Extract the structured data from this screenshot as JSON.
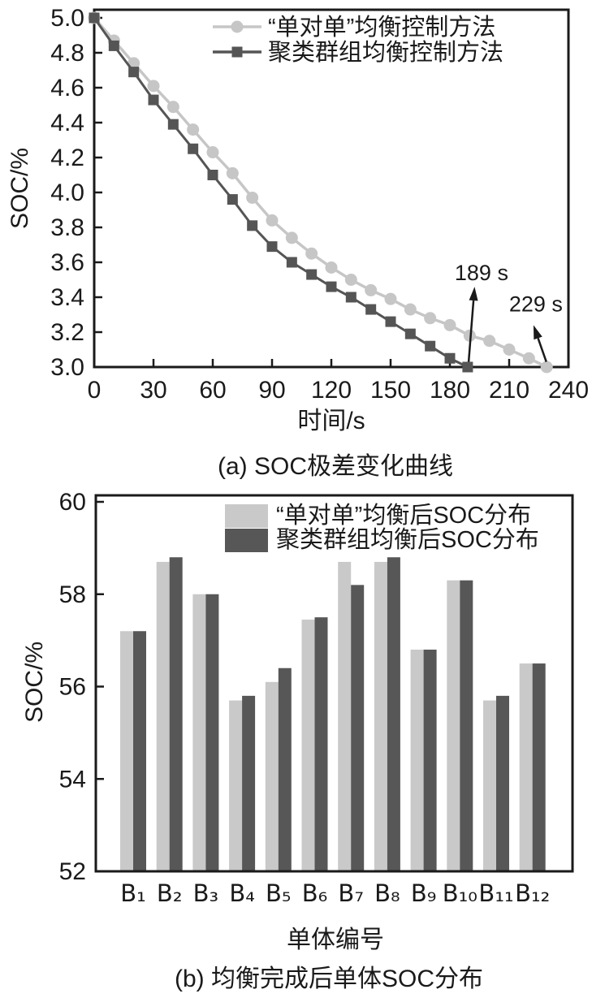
{
  "figure": {
    "background": "#ffffff",
    "ink": "#1a1a1a"
  },
  "chart_data": [
    {
      "id": "chart-a",
      "type": "line",
      "caption": "(a) SOC极差变化曲线",
      "xlabel": "时间/s",
      "ylabel": "SOC/%",
      "xlim": [
        0,
        240
      ],
      "ylim": [
        3.0,
        5.0
      ],
      "xticks": [
        "0",
        "30",
        "60",
        "90",
        "120",
        "150",
        "180",
        "210",
        "240"
      ],
      "yticks": [
        "3.0",
        "3.2",
        "3.4",
        "3.6",
        "3.8",
        "4.0",
        "4.2",
        "4.4",
        "4.6",
        "4.8",
        "5.0"
      ],
      "grid": false,
      "legend_position": "top-inside",
      "series": [
        {
          "name": "“单对单”均衡控制方法",
          "marker": "circle",
          "color": "#c6c6c6",
          "points": [
            [
              0,
              5.0
            ],
            [
              10,
              4.87
            ],
            [
              20,
              4.74
            ],
            [
              30,
              4.61
            ],
            [
              40,
              4.49
            ],
            [
              50,
              4.36
            ],
            [
              60,
              4.23
            ],
            [
              70,
              4.11
            ],
            [
              80,
              3.97
            ],
            [
              90,
              3.84
            ],
            [
              100,
              3.74
            ],
            [
              110,
              3.65
            ],
            [
              120,
              3.57
            ],
            [
              130,
              3.5
            ],
            [
              140,
              3.44
            ],
            [
              150,
              3.39
            ],
            [
              160,
              3.33
            ],
            [
              170,
              3.28
            ],
            [
              180,
              3.24
            ],
            [
              190,
              3.18
            ],
            [
              200,
              3.15
            ],
            [
              210,
              3.1
            ],
            [
              220,
              3.05
            ],
            [
              229,
              3.0
            ]
          ]
        },
        {
          "name": "聚类群组均衡控制方法",
          "marker": "square",
          "color": "#555555",
          "points": [
            [
              0,
              5.0
            ],
            [
              10,
              4.84
            ],
            [
              20,
              4.69
            ],
            [
              30,
              4.53
            ],
            [
              40,
              4.39
            ],
            [
              50,
              4.25
            ],
            [
              60,
              4.1
            ],
            [
              70,
              3.96
            ],
            [
              80,
              3.81
            ],
            [
              90,
              3.69
            ],
            [
              100,
              3.6
            ],
            [
              110,
              3.53
            ],
            [
              120,
              3.46
            ],
            [
              130,
              3.4
            ],
            [
              140,
              3.33
            ],
            [
              150,
              3.26
            ],
            [
              160,
              3.19
            ],
            [
              170,
              3.12
            ],
            [
              180,
              3.05
            ],
            [
              189,
              3.0
            ]
          ]
        }
      ],
      "annotations": [
        {
          "text": "189 s",
          "text_at": [
            196,
            3.54
          ],
          "arrow_tip": [
            192.5,
            3.46
          ],
          "arrow_tail": [
            189.5,
            3.03
          ]
        },
        {
          "text": "229 s",
          "text_at": [
            223.5,
            3.36
          ],
          "arrow_tip": [
            222.3,
            3.24
          ],
          "arrow_tail": [
            228.8,
            3.03
          ]
        }
      ]
    },
    {
      "id": "chart-b",
      "type": "bar",
      "caption": "(b) 均衡完成后单体SOC分布",
      "xlabel": "单体编号",
      "ylabel": "SOC/%",
      "ylim": [
        52,
        60
      ],
      "yticks": [
        "52",
        "54",
        "56",
        "58",
        "60"
      ],
      "grid": false,
      "legend_position": "top-inside",
      "categories": [
        "B₁",
        "B₂",
        "B₃",
        "B₄",
        "B₅",
        "B₆",
        "B₇",
        "B₈",
        "B₉",
        "B₁₀",
        "B₁₁",
        "B₁₂"
      ],
      "series": [
        {
          "name": "“单对单”均衡后SOC分布",
          "color": "#c9c9c9",
          "values": [
            57.2,
            58.7,
            58.0,
            55.7,
            56.1,
            57.45,
            58.7,
            58.7,
            56.8,
            58.3,
            55.7,
            56.5
          ]
        },
        {
          "name": "聚类群组均衡后SOC分布",
          "color": "#575757",
          "values": [
            57.2,
            58.8,
            58.0,
            55.8,
            56.4,
            57.5,
            58.2,
            58.8,
            56.8,
            58.3,
            55.8,
            56.5
          ]
        }
      ]
    }
  ]
}
